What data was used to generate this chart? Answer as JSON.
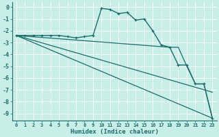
{
  "title": "",
  "xlabel": "Humidex (Indice chaleur)",
  "background_color": "#c8eee8",
  "grid_color": "#ffffff",
  "line_color": "#1a6b6b",
  "xlim": [
    -0.5,
    23.5
  ],
  "ylim": [
    -9.6,
    0.4
  ],
  "xticks": [
    0,
    1,
    2,
    3,
    4,
    5,
    6,
    7,
    8,
    9,
    10,
    11,
    12,
    13,
    14,
    15,
    16,
    17,
    18,
    19,
    20,
    21,
    22,
    23
  ],
  "yticks": [
    0,
    -1,
    -2,
    -3,
    -4,
    -5,
    -6,
    -7,
    -8,
    -9
  ],
  "series": [
    {
      "x": [
        0,
        1,
        2,
        3,
        4,
        5,
        6,
        7,
        8,
        9,
        10,
        11,
        12,
        13,
        14,
        15,
        16,
        17,
        18,
        19,
        20,
        21,
        22,
        23
      ],
      "y": [
        -2.4,
        -2.4,
        -2.4,
        -2.4,
        -2.4,
        -2.4,
        -2.5,
        -2.6,
        -2.5,
        -2.4,
        -0.1,
        -0.2,
        -0.55,
        -0.45,
        -1.1,
        -1.0,
        -2.0,
        -3.2,
        -3.4,
        -4.9,
        -4.9,
        -6.5,
        -6.5,
        -9.4
      ],
      "marker": true,
      "linestyle": "-"
    },
    {
      "x": [
        0,
        23
      ],
      "y": [
        -2.4,
        -7.2
      ],
      "marker": false,
      "linestyle": "-"
    },
    {
      "x": [
        0,
        23
      ],
      "y": [
        -2.4,
        -9.4
      ],
      "marker": false,
      "linestyle": "-"
    },
    {
      "x": [
        0,
        18,
        19,
        20,
        21,
        22,
        23
      ],
      "y": [
        -2.4,
        -3.4,
        -3.4,
        -5.0,
        -6.5,
        -6.5,
        -9.4
      ],
      "marker": false,
      "linestyle": "-"
    }
  ]
}
